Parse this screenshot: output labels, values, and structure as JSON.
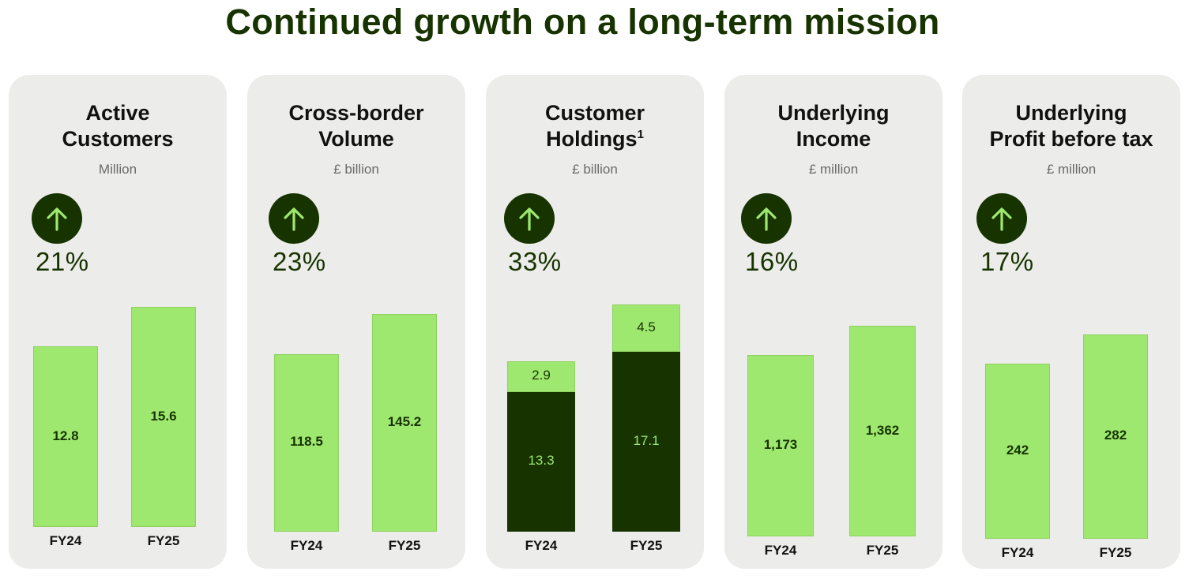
{
  "page_title": "Continued growth on a long-term mission",
  "colors": {
    "accent_light": "#9fe870",
    "accent_dark": "#173300",
    "card_bg": "#ecedea"
  },
  "chart_data": [
    {
      "type": "bar",
      "title_lines": [
        "Active",
        "Customers"
      ],
      "unit": "Million",
      "growth": "21%",
      "categories": [
        "FY24",
        "FY25"
      ],
      "values": [
        12.8,
        15.6
      ],
      "value_labels": [
        "12.8",
        "15.6"
      ],
      "ylim": [
        0,
        16.5
      ]
    },
    {
      "type": "bar",
      "title_lines": [
        "Cross-border",
        "Volume"
      ],
      "unit": "£ billion",
      "growth": "23%",
      "categories": [
        "FY24",
        "FY25"
      ],
      "values": [
        118.5,
        145.2
      ],
      "value_labels": [
        "118.5",
        "145.2"
      ],
      "ylim": [
        0,
        150
      ]
    },
    {
      "type": "bar",
      "stacked": true,
      "title_lines": [
        "Customer",
        "Holdings"
      ],
      "title_sup": "1",
      "unit": "£ billion",
      "growth": "33%",
      "categories": [
        "FY24",
        "FY25"
      ],
      "series": [
        {
          "name": "base",
          "values": [
            13.3,
            17.1
          ],
          "value_labels": [
            "13.3",
            "17.1"
          ]
        },
        {
          "name": "top",
          "values": [
            2.9,
            4.5
          ],
          "value_labels": [
            "2.9",
            "4.5"
          ]
        }
      ],
      "ylim": [
        0,
        22.5
      ]
    },
    {
      "type": "bar",
      "title_lines": [
        "Underlying",
        "Income"
      ],
      "unit": "£ million",
      "growth": "16%",
      "categories": [
        "FY24",
        "FY25"
      ],
      "values": [
        1173,
        1362
      ],
      "value_labels": [
        "1,173",
        "1,362"
      ],
      "ylim": [
        0,
        1400
      ]
    },
    {
      "type": "bar",
      "title_lines": [
        "Underlying",
        "Profit before tax"
      ],
      "unit": "£ million",
      "growth": "17%",
      "categories": [
        "FY24",
        "FY25"
      ],
      "values": [
        242,
        282
      ],
      "value_labels": [
        "242",
        "282"
      ],
      "ylim": [
        0,
        295
      ]
    }
  ]
}
